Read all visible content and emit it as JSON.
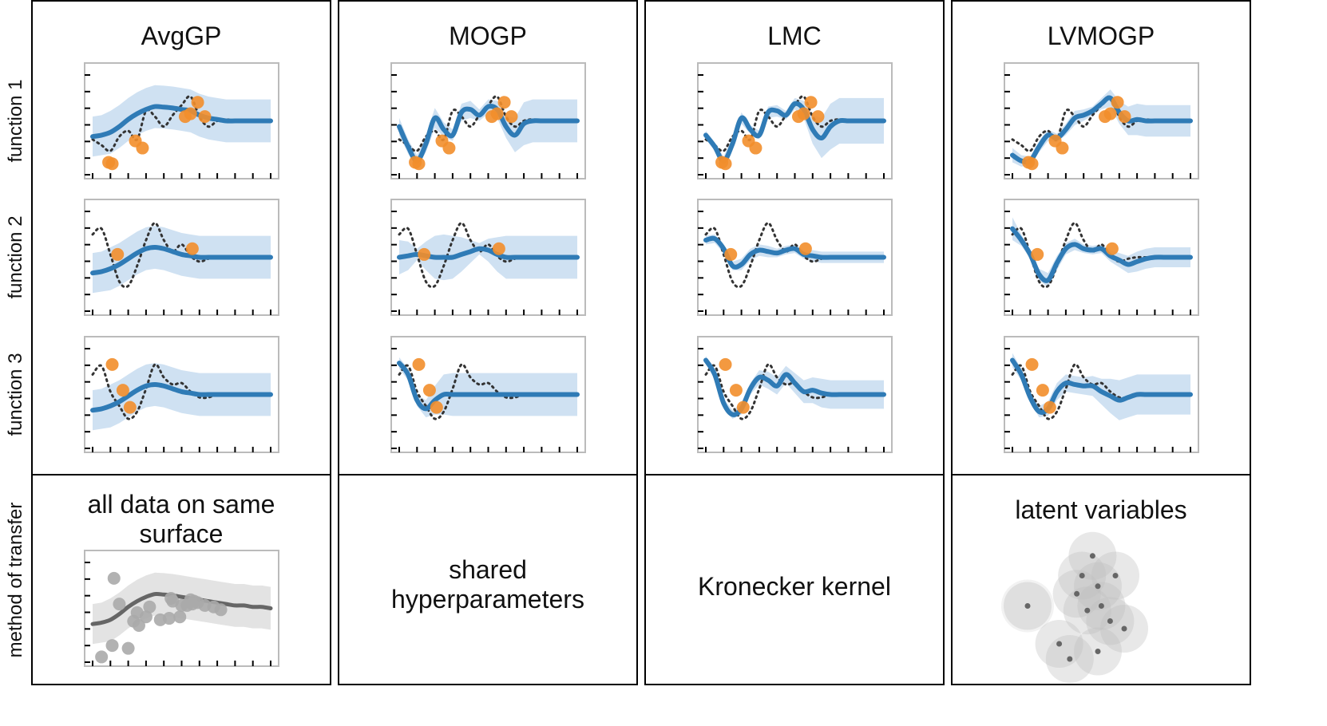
{
  "columns": [
    {
      "id": "avggp",
      "title": "AvgGP"
    },
    {
      "id": "mogp",
      "title": "MOGP"
    },
    {
      "id": "lmc",
      "title": "LMC"
    },
    {
      "id": "lvmogp",
      "title": "LVMOGP"
    }
  ],
  "row_labels": [
    "function 1",
    "function 2",
    "function 3"
  ],
  "method_label": "method of transfer",
  "methods": [
    {
      "column": "avggp",
      "lines": [
        "all data on same",
        "surface"
      ]
    },
    {
      "column": "mogp",
      "lines": [
        "shared",
        "hyperparameters"
      ]
    },
    {
      "column": "lmc",
      "lines": [
        "Kronecker kernel"
      ]
    },
    {
      "column": "lvmogp",
      "lines": [
        "latent variables"
      ]
    }
  ],
  "colors": {
    "mean": "#2f7bb6",
    "band": "#cfe1f2",
    "points": "#f28e2b",
    "truth": "#333333",
    "gray_mean": "#666666",
    "gray_band": "#e3e3e3",
    "gray_points": "#aaaaaa",
    "frame": "#bbbbbb"
  },
  "chart_data": {
    "type": "line",
    "xlim": [
      0,
      10
    ],
    "ylim": [
      -1.8,
      1.8
    ],
    "grid": false,
    "truth_functions": {
      "function 1": {
        "x": [
          0,
          0.5,
          1,
          1.5,
          2,
          2.5,
          3,
          3.5,
          4,
          4.5,
          5,
          5.5,
          6,
          6.5,
          7,
          7.5,
          8,
          8.5,
          9,
          9.5,
          10
        ],
        "y": [
          -0.65,
          -0.85,
          -1.05,
          -0.55,
          -0.35,
          -0.65,
          0.35,
          0.15,
          -0.2,
          0.2,
          0.55,
          0.85,
          0.15,
          -0.2,
          0,
          0.05,
          0,
          0,
          0,
          0,
          0
        ]
      },
      "function 2": {
        "x": [
          0,
          0.5,
          1,
          1.5,
          2,
          2.5,
          3,
          3.5,
          4,
          4.5,
          5,
          5.5,
          6,
          6.5,
          7,
          7.5,
          8,
          8.5,
          9,
          9.5,
          10
        ],
        "y": [
          0.8,
          1,
          0.1,
          -0.85,
          -1,
          -0.3,
          0.6,
          1.2,
          0.6,
          0.2,
          0.45,
          0.05,
          -0.15,
          -0.05,
          0,
          0,
          0,
          0,
          0,
          0,
          0
        ]
      },
      "function 3": {
        "x": [
          0,
          0.5,
          1,
          1.5,
          2,
          2.5,
          3,
          3.5,
          4,
          4.5,
          5,
          5.5,
          6,
          6.5,
          7,
          7.5,
          8,
          8.5,
          9,
          9.5,
          10
        ],
        "y": [
          0.7,
          1,
          0.1,
          -0.4,
          -0.85,
          -0.6,
          0.2,
          1.05,
          0.6,
          0.35,
          0.4,
          0.1,
          -0.1,
          -0.1,
          0,
          0,
          0,
          0,
          0,
          0,
          0
        ]
      }
    },
    "observations": {
      "function 1": {
        "x": [
          0.9,
          1.1,
          2.4,
          2.8,
          5.2,
          5.5,
          5.9,
          6.3
        ],
        "y": [
          -1.45,
          -1.5,
          -0.7,
          -0.95,
          0.15,
          0.25,
          0.65,
          0.15
        ]
      },
      "function 2": {
        "x": [
          1.4,
          5.6
        ],
        "y": [
          0.1,
          0.3
        ]
      },
      "function 3": {
        "x": [
          1.1,
          1.7,
          2.1
        ],
        "y": [
          1.05,
          0.15,
          -0.45
        ]
      }
    },
    "panels": [
      {
        "column": "AvgGP",
        "function": "function 1",
        "mean": [
          -0.55,
          -0.5,
          -0.4,
          -0.2,
          0.05,
          0.25,
          0.4,
          0.5,
          0.48,
          0.45,
          0.4,
          0.35,
          0.2,
          0.1,
          0.05,
          0,
          0,
          0,
          0,
          0,
          0
        ],
        "std": [
          0.7,
          0.7,
          0.75,
          0.75,
          0.75,
          0.75,
          0.75,
          0.75,
          0.75,
          0.75,
          0.75,
          0.75,
          0.75,
          0.75,
          0.75,
          0.75,
          0.75,
          0.75,
          0.75,
          0.75,
          0.75
        ]
      },
      {
        "column": "MOGP",
        "function": "function 1",
        "mean": [
          -0.2,
          -0.9,
          -1.4,
          -0.8,
          0.1,
          -0.3,
          -0.5,
          0.3,
          0.4,
          0.2,
          0.5,
          0.4,
          -0.2,
          -0.5,
          -0.1,
          0,
          0,
          0,
          0,
          0,
          0
        ],
        "std": [
          0.3,
          0.25,
          0.2,
          0.3,
          0.35,
          0.25,
          0.2,
          0.3,
          0.3,
          0.2,
          0.25,
          0.3,
          0.4,
          0.6,
          0.75,
          0.75,
          0.75,
          0.75,
          0.75,
          0.75,
          0.75
        ]
      },
      {
        "column": "LMC",
        "function": "function 1",
        "mean": [
          -0.5,
          -0.9,
          -1.4,
          -0.8,
          0.1,
          -0.3,
          -0.5,
          0.3,
          0.35,
          0.2,
          0.6,
          0.4,
          -0.3,
          -0.6,
          -0.2,
          0,
          0,
          0,
          0,
          0,
          0
        ],
        "std": [
          0.15,
          0.15,
          0.15,
          0.2,
          0.2,
          0.15,
          0.15,
          0.2,
          0.2,
          0.15,
          0.2,
          0.3,
          0.5,
          0.7,
          0.8,
          0.8,
          0.8,
          0.8,
          0.8,
          0.8,
          0.8
        ]
      },
      {
        "column": "LVMOGP",
        "function": "function 1",
        "mean": [
          -1.2,
          -1.4,
          -1.4,
          -0.9,
          -0.5,
          -0.6,
          -0.3,
          0.1,
          0.2,
          0.35,
          0.6,
          0.8,
          0.3,
          0,
          0.05,
          0,
          0,
          0,
          0,
          0,
          0
        ],
        "std": [
          0.25,
          0.2,
          0.15,
          0.2,
          0.2,
          0.15,
          0.2,
          0.25,
          0.2,
          0.15,
          0.2,
          0.3,
          0.4,
          0.5,
          0.55,
          0.55,
          0.55,
          0.55,
          0.55,
          0.55,
          0.55
        ]
      },
      {
        "column": "AvgGP",
        "function": "function 2",
        "mean": [
          -0.55,
          -0.5,
          -0.4,
          -0.25,
          -0.05,
          0.15,
          0.3,
          0.35,
          0.3,
          0.2,
          0.1,
          0.05,
          0,
          0,
          0,
          0,
          0,
          0,
          0,
          0,
          0
        ],
        "std": [
          0.7,
          0.7,
          0.75,
          0.75,
          0.75,
          0.75,
          0.75,
          0.75,
          0.75,
          0.75,
          0.75,
          0.75,
          0.75,
          0.75,
          0.75,
          0.75,
          0.75,
          0.75,
          0.75,
          0.75,
          0.75
        ]
      },
      {
        "column": "MOGP",
        "function": "function 2",
        "mean": [
          0,
          0.05,
          0.1,
          0.05,
          0,
          0,
          0,
          0.1,
          0.2,
          0.3,
          0.25,
          0.1,
          0,
          0,
          0,
          0,
          0,
          0,
          0,
          0,
          0
        ],
        "std": [
          0.6,
          0.5,
          0.2,
          0.5,
          0.75,
          0.8,
          0.75,
          0.6,
          0.4,
          0.2,
          0.4,
          0.6,
          0.75,
          0.75,
          0.75,
          0.75,
          0.75,
          0.75,
          0.75,
          0.75,
          0.75
        ]
      },
      {
        "column": "LMC",
        "function": "function 2",
        "mean": [
          0.6,
          0.65,
          0.3,
          -0.3,
          -0.25,
          0.1,
          0.25,
          0.2,
          0.15,
          0.25,
          0.3,
          0.1,
          0.05,
          0,
          0,
          0,
          0,
          0,
          0,
          0,
          0
        ],
        "std": [
          0.15,
          0.15,
          0.15,
          0.15,
          0.2,
          0.2,
          0.2,
          0.2,
          0.15,
          0.15,
          0.15,
          0.15,
          0.2,
          0.2,
          0.2,
          0.2,
          0.2,
          0.2,
          0.2,
          0.2,
          0.2
        ]
      },
      {
        "column": "LVMOGP",
        "function": "function 2",
        "mean": [
          1,
          0.6,
          0.1,
          -0.6,
          -0.8,
          -0.2,
          0.3,
          0.45,
          0.3,
          0.25,
          0.3,
          0.05,
          -0.1,
          -0.25,
          -0.15,
          -0.05,
          0,
          0,
          0,
          0,
          0
        ],
        "std": [
          0.4,
          0.2,
          0.15,
          0.2,
          0.25,
          0.25,
          0.2,
          0.2,
          0.15,
          0.15,
          0.15,
          0.2,
          0.25,
          0.3,
          0.35,
          0.35,
          0.35,
          0.35,
          0.35,
          0.35,
          0.35
        ]
      },
      {
        "column": "AvgGP",
        "function": "function 3",
        "mean": [
          -0.55,
          -0.5,
          -0.4,
          -0.25,
          -0.05,
          0.15,
          0.3,
          0.35,
          0.3,
          0.2,
          0.1,
          0.05,
          0,
          0,
          0,
          0,
          0,
          0,
          0,
          0,
          0
        ],
        "std": [
          0.7,
          0.7,
          0.75,
          0.75,
          0.75,
          0.75,
          0.75,
          0.75,
          0.75,
          0.75,
          0.75,
          0.75,
          0.75,
          0.75,
          0.75,
          0.75,
          0.75,
          0.75,
          0.75,
          0.75,
          0.75
        ]
      },
      {
        "column": "MOGP",
        "function": "function 3",
        "mean": [
          1.1,
          0.7,
          -0.2,
          -0.5,
          -0.2,
          0,
          0,
          0,
          0,
          0,
          0,
          0,
          0,
          0,
          0,
          0,
          0,
          0,
          0,
          0,
          0
        ],
        "std": [
          0.2,
          0.2,
          0.2,
          0.3,
          0.5,
          0.7,
          0.75,
          0.75,
          0.75,
          0.75,
          0.75,
          0.75,
          0.75,
          0.75,
          0.75,
          0.75,
          0.75,
          0.75,
          0.75,
          0.75,
          0.75
        ]
      },
      {
        "column": "LMC",
        "function": "function 3",
        "mean": [
          1.2,
          0.7,
          -0.3,
          -0.7,
          -0.5,
          0.2,
          0.6,
          0.5,
          0.3,
          0.7,
          0.4,
          0.1,
          0.15,
          0.05,
          0,
          0,
          0,
          0,
          0,
          0,
          0
        ],
        "std": [
          0.15,
          0.15,
          0.15,
          0.15,
          0.2,
          0.2,
          0.25,
          0.3,
          0.3,
          0.3,
          0.35,
          0.4,
          0.45,
          0.5,
          0.5,
          0.5,
          0.5,
          0.5,
          0.5,
          0.5,
          0.5
        ]
      },
      {
        "column": "LVMOGP",
        "function": "function 3",
        "mean": [
          1.2,
          0.7,
          -0.1,
          -0.6,
          -0.5,
          0.1,
          0.4,
          0.35,
          0.3,
          0.3,
          0.1,
          -0.05,
          -0.2,
          -0.1,
          0,
          0,
          0,
          0,
          0,
          0,
          0
        ],
        "std": [
          0.25,
          0.2,
          0.15,
          0.2,
          0.25,
          0.3,
          0.3,
          0.3,
          0.3,
          0.35,
          0.45,
          0.6,
          0.7,
          0.7,
          0.7,
          0.7,
          0.7,
          0.7,
          0.7,
          0.7,
          0.7
        ]
      }
    ],
    "pooled_panel": {
      "mean": [
        -0.55,
        -0.5,
        -0.4,
        -0.2,
        0.05,
        0.25,
        0.4,
        0.5,
        0.48,
        0.45,
        0.4,
        0.35,
        0.3,
        0.25,
        0.2,
        0.15,
        0.1,
        0.1,
        0.05,
        0.05,
        0
      ],
      "std": [
        0.7,
        0.7,
        0.75,
        0.75,
        0.75,
        0.75,
        0.75,
        0.75,
        0.75,
        0.75,
        0.75,
        0.75,
        0.75,
        0.75,
        0.75,
        0.75,
        0.75,
        0.75,
        0.75,
        0.75,
        0.75
      ],
      "points": {
        "x": [
          0.5,
          1.1,
          1.2,
          1.5,
          2,
          2.3,
          2.5,
          2.6,
          3,
          3.2,
          3.8,
          4.3,
          4.4,
          4.5,
          4.9,
          5,
          5.3,
          5.5,
          5.6,
          5.7,
          5.9,
          6.3,
          6.8,
          7.2
        ],
        "y": [
          -1.7,
          -1.3,
          1.05,
          0.15,
          -1.4,
          -0.45,
          -0.15,
          -0.6,
          -0.3,
          0.05,
          -0.4,
          -0.35,
          0.35,
          0.25,
          -0.3,
          0.1,
          0.1,
          0.3,
          0.15,
          0.25,
          0.2,
          0.1,
          0.05,
          -0.05
        ]
      }
    },
    "latent_space": {
      "centers": [
        [
          0.47,
          0.22
        ],
        [
          0.41,
          0.35
        ],
        [
          0.6,
          0.35
        ],
        [
          0.1,
          0.55
        ],
        [
          0.38,
          0.47
        ],
        [
          0.5,
          0.42
        ],
        [
          0.52,
          0.55
        ],
        [
          0.44,
          0.58
        ],
        [
          0.57,
          0.65
        ],
        [
          0.65,
          0.7
        ],
        [
          0.28,
          0.8
        ],
        [
          0.5,
          0.85
        ],
        [
          0.34,
          0.9
        ]
      ]
    }
  }
}
